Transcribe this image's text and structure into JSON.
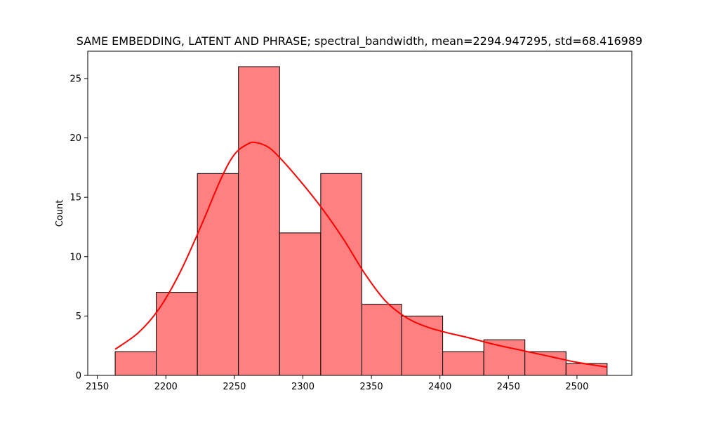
{
  "chart_data": {
    "type": "bar",
    "title": "SAME EMBEDDING, LATENT AND PHRASE; spectral_bandwidth, mean=2294.947295, std=68.416989",
    "xlabel": "",
    "ylabel": "Count",
    "xlim": [
      2143,
      2540
    ],
    "ylim": [
      0,
      27.3
    ],
    "x_ticks": [
      2150,
      2200,
      2250,
      2300,
      2350,
      2400,
      2450,
      2500
    ],
    "y_ticks": [
      0,
      5,
      10,
      15,
      20,
      25
    ],
    "bins": [
      {
        "x0": 2163,
        "x1": 2193,
        "count": 2
      },
      {
        "x0": 2193,
        "x1": 2223,
        "count": 7
      },
      {
        "x0": 2223,
        "x1": 2253,
        "count": 17
      },
      {
        "x0": 2253,
        "x1": 2283,
        "count": 26
      },
      {
        "x0": 2283,
        "x1": 2313,
        "count": 12
      },
      {
        "x0": 2313,
        "x1": 2343,
        "count": 17
      },
      {
        "x0": 2343,
        "x1": 2372,
        "count": 6
      },
      {
        "x0": 2372,
        "x1": 2402,
        "count": 5
      },
      {
        "x0": 2402,
        "x1": 2432,
        "count": 2
      },
      {
        "x0": 2432,
        "x1": 2462,
        "count": 3
      },
      {
        "x0": 2462,
        "x1": 2492,
        "count": 2
      },
      {
        "x0": 2492,
        "x1": 2522,
        "count": 1
      }
    ],
    "kde": {
      "x": [
        2163,
        2180,
        2195,
        2210,
        2225,
        2240,
        2250,
        2260,
        2266,
        2275,
        2285,
        2300,
        2315,
        2330,
        2345,
        2360,
        2375,
        2390,
        2405,
        2420,
        2440,
        2460,
        2480,
        2500,
        2522
      ],
      "y": [
        2.2,
        3.6,
        5.6,
        8.6,
        12.4,
        16.5,
        18.6,
        19.5,
        19.6,
        19.2,
        18.1,
        16.1,
        13.9,
        11.4,
        8.6,
        6.3,
        4.9,
        4.1,
        3.6,
        3.2,
        2.6,
        2.1,
        1.6,
        1.1,
        0.7
      ]
    },
    "colors": {
      "bar_fill": "#ff8080",
      "bar_edge": "#000000",
      "kde_line": "#ff0000"
    },
    "grid": false
  }
}
